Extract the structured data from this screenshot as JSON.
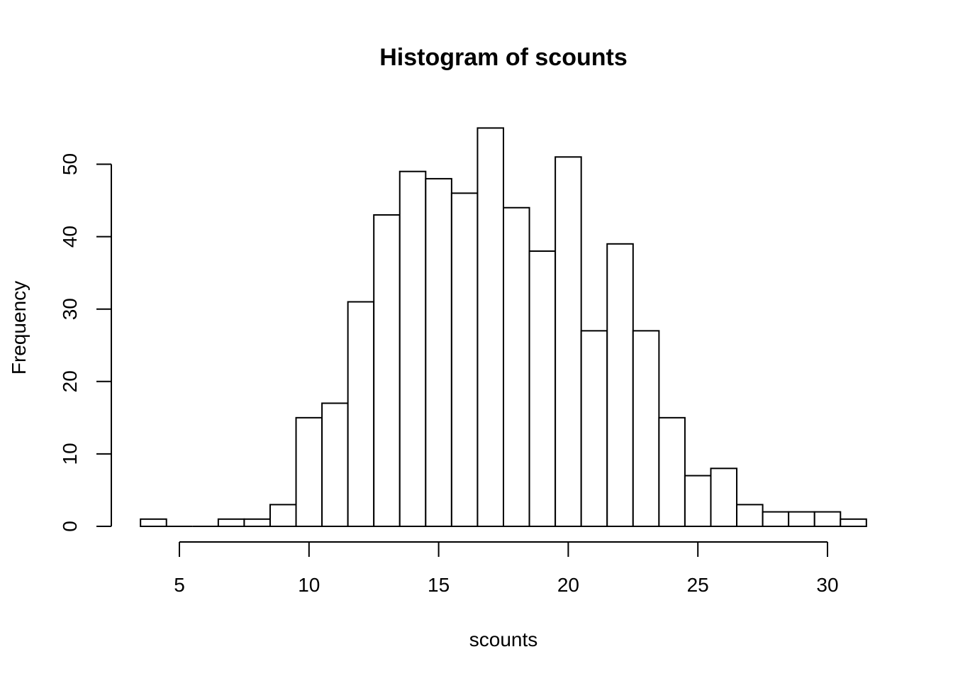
{
  "chart_data": {
    "type": "bar",
    "title": "Histogram of scounts",
    "xlabel": "scounts",
    "ylabel": "Frequency",
    "bin_edges": [
      3.5,
      4.5,
      5.5,
      6.5,
      7.5,
      8.5,
      9.5,
      10.5,
      11.5,
      12.5,
      13.5,
      14.5,
      15.5,
      16.5,
      17.5,
      18.5,
      19.5,
      20.5,
      21.5,
      22.5,
      23.5,
      24.5,
      25.5,
      26.5,
      27.5,
      28.5,
      29.5,
      30.5,
      31.5
    ],
    "values": [
      1,
      0,
      0,
      1,
      1,
      3,
      15,
      17,
      31,
      43,
      49,
      48,
      46,
      55,
      44,
      38,
      51,
      27,
      39,
      27,
      15,
      7,
      8,
      3,
      2,
      2,
      2,
      1
    ],
    "x_ticks": [
      5,
      10,
      15,
      20,
      25,
      30
    ],
    "x_tick_labels": [
      "5",
      "10",
      "15",
      "20",
      "25",
      "30"
    ],
    "y_ticks": [
      0,
      10,
      20,
      30,
      40,
      50
    ],
    "y_tick_labels": [
      "0",
      "10",
      "20",
      "30",
      "40",
      "50"
    ],
    "xlim": [
      3.5,
      31.5
    ],
    "ylim": [
      0,
      55
    ],
    "grid": false,
    "bar_fill": "#ffffff",
    "bar_stroke": "#000000"
  }
}
